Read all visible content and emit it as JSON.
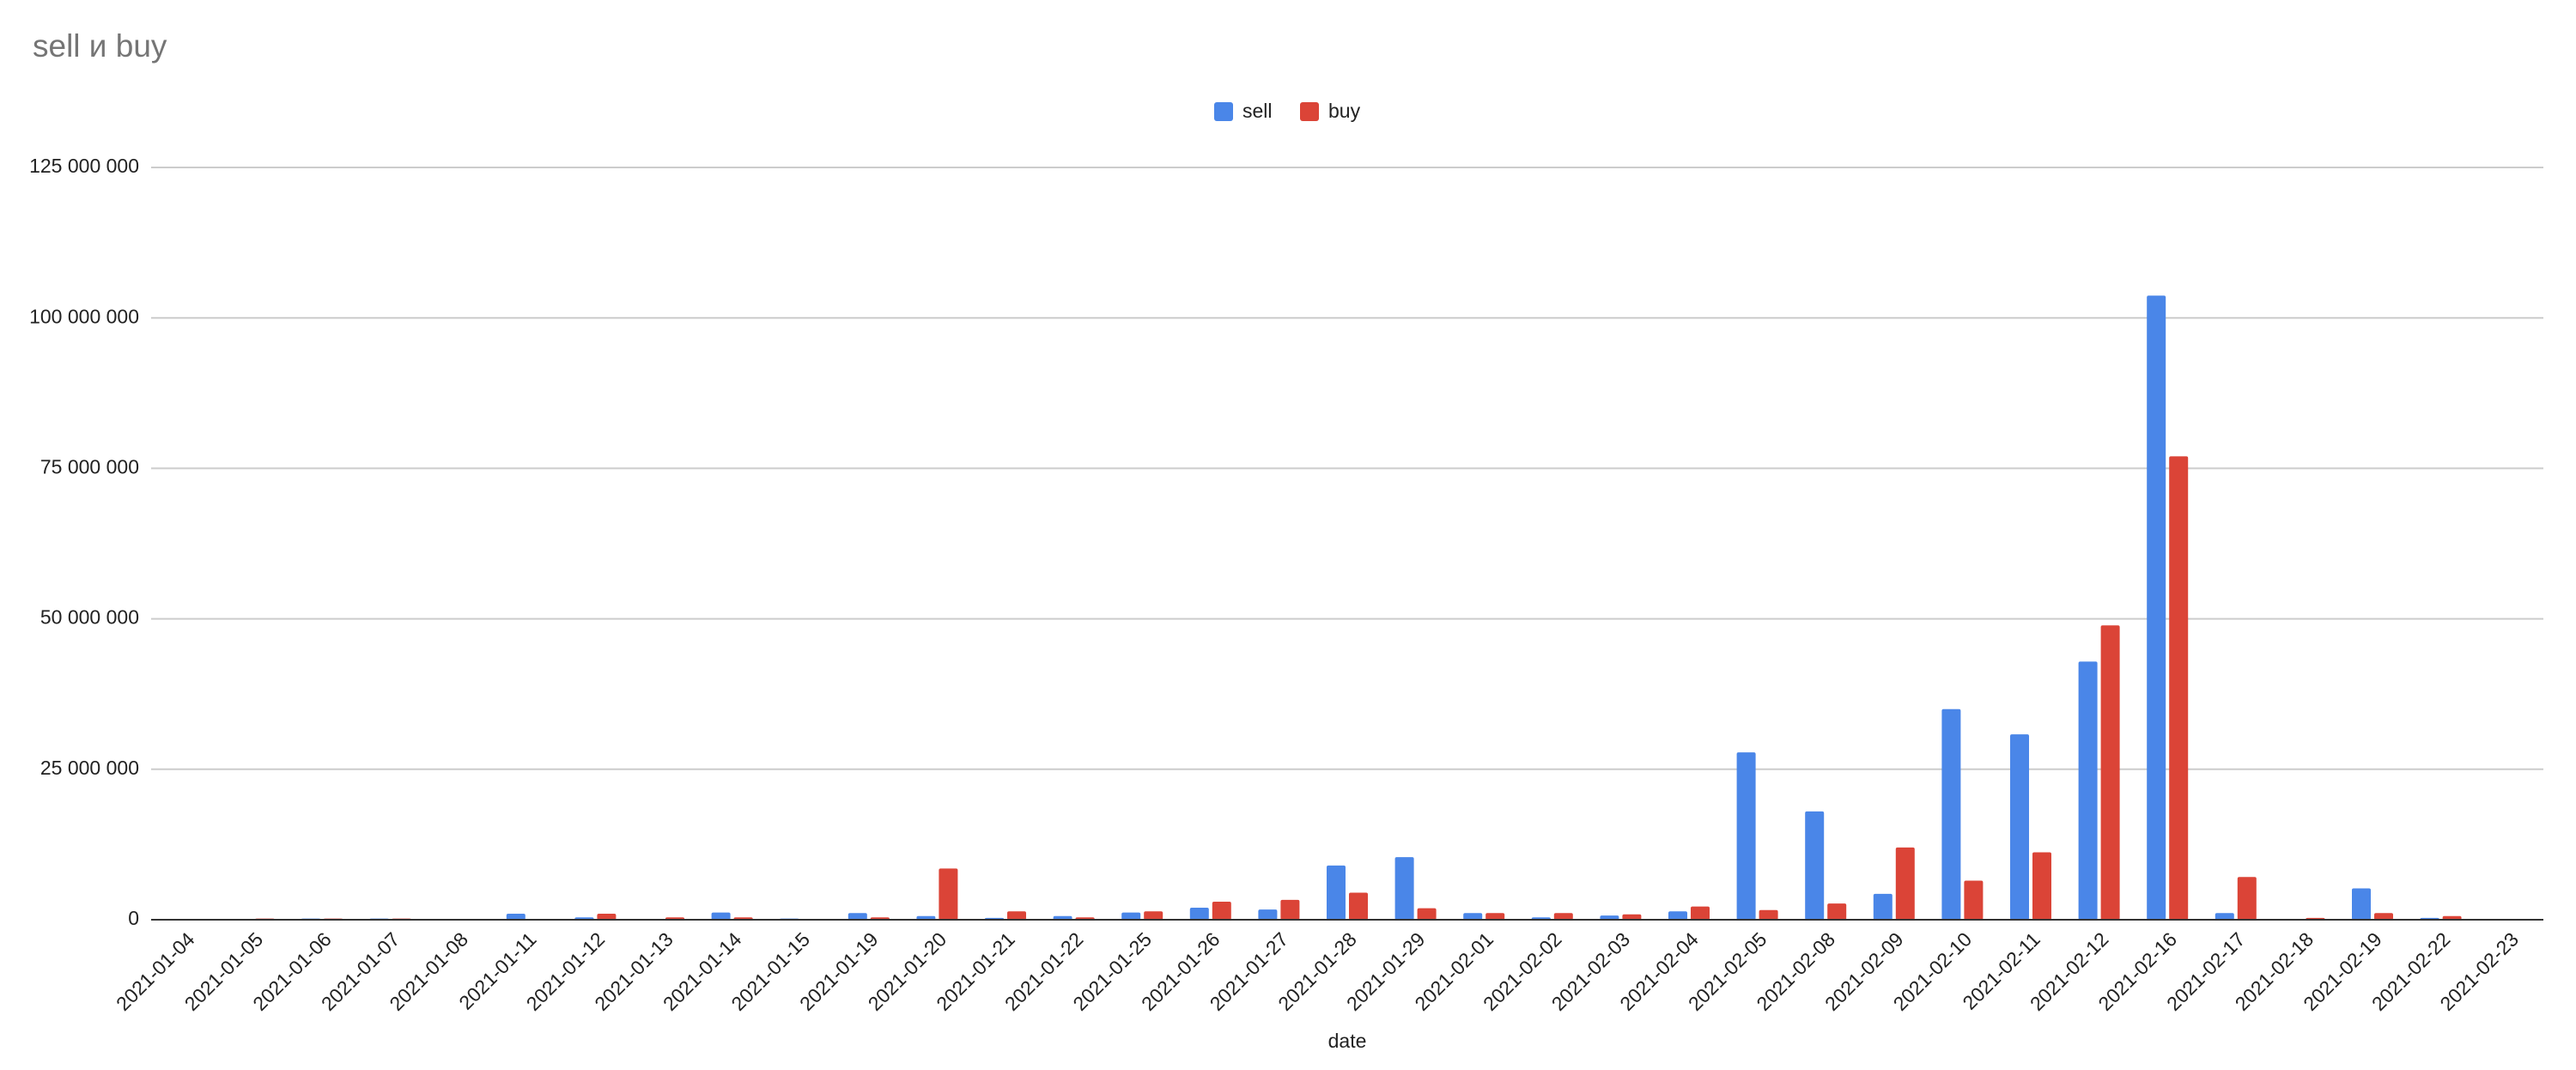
{
  "chart_data": {
    "type": "bar",
    "title": "sell и buy",
    "x_label": "date",
    "categories": [
      "2021-01-04",
      "2021-01-05",
      "2021-01-06",
      "2021-01-07",
      "2021-01-08",
      "2021-01-11",
      "2021-01-12",
      "2021-01-13",
      "2021-01-14",
      "2021-01-15",
      "2021-01-19",
      "2021-01-20",
      "2021-01-21",
      "2021-01-22",
      "2021-01-25",
      "2021-01-26",
      "2021-01-27",
      "2021-01-28",
      "2021-01-29",
      "2021-02-01",
      "2021-02-02",
      "2021-02-03",
      "2021-02-04",
      "2021-02-05",
      "2021-02-08",
      "2021-02-09",
      "2021-02-10",
      "2021-02-11",
      "2021-02-12",
      "2021-02-16",
      "2021-02-17",
      "2021-02-18",
      "2021-02-19",
      "2021-02-22",
      "2021-02-23"
    ],
    "series": [
      {
        "name": "sell",
        "color": "#4a86e8",
        "values": [
          100000,
          100000,
          200000,
          200000,
          100000,
          1000000,
          400000,
          100000,
          1200000,
          200000,
          1100000,
          600000,
          300000,
          600000,
          1200000,
          2000000,
          1700000,
          9000000,
          10400000,
          1100000,
          400000,
          700000,
          1400000,
          27800000,
          18000000,
          4300000,
          35000000,
          30800000,
          42900000,
          103700000,
          1100000,
          100000,
          5200000,
          300000,
          100000
        ]
      },
      {
        "name": "buy",
        "color": "#db4437",
        "values": [
          100000,
          200000,
          200000,
          200000,
          100000,
          100000,
          1000000,
          400000,
          400000,
          100000,
          400000,
          8500000,
          1400000,
          400000,
          1400000,
          3000000,
          3300000,
          4500000,
          1900000,
          1100000,
          1100000,
          900000,
          2200000,
          1600000,
          2700000,
          12000000,
          6500000,
          11200000,
          48900000,
          77000000,
          7100000,
          300000,
          1100000,
          600000,
          100000
        ]
      }
    ],
    "ylim": [
      0,
      125000000
    ],
    "yticks": [
      {
        "value": 0,
        "label": "0"
      },
      {
        "value": 25000000,
        "label": "25 000 000"
      },
      {
        "value": 50000000,
        "label": "50 000 000"
      },
      {
        "value": 75000000,
        "label": "75 000 000"
      },
      {
        "value": 100000000,
        "label": "100 000 000"
      },
      {
        "value": 125000000,
        "label": "125 000 000"
      }
    ],
    "grid": true,
    "legend": "top"
  }
}
